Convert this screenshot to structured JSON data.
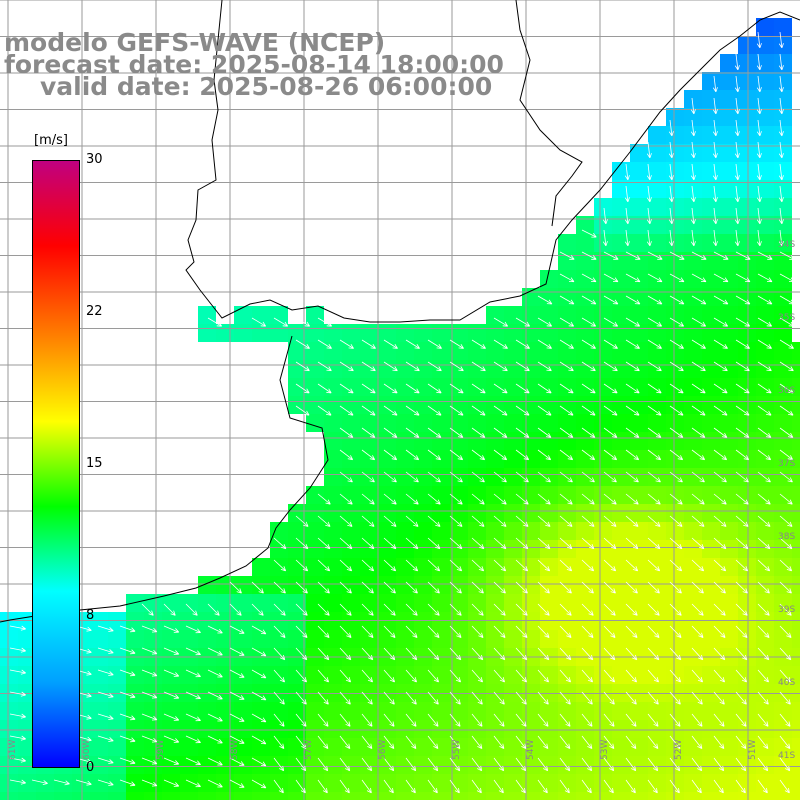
{
  "title": {
    "line1": "modelo GEFS-WAVE (NCEP)",
    "line2": "forecast date: 2025-08-14 18:00:00",
    "line3": "valid date: 2025-08-26 06:00:00"
  },
  "colorbar": {
    "units": "[m/s]",
    "ticks": [
      "30",
      "22",
      "15",
      "8",
      "0"
    ],
    "min": 0,
    "max": 30,
    "colors": [
      "#0000ff",
      "#00a0ff",
      "#00ffff",
      "#00ff00",
      "#ffff00",
      "#ff8000",
      "#ff0000",
      "#c00080"
    ]
  },
  "grid": {
    "lat_labels": [
      "34S",
      "35S",
      "36S",
      "37S",
      "38S",
      "39S",
      "40S",
      "41S"
    ],
    "lon_labels": [
      "61W",
      "60W",
      "59W",
      "58W",
      "57W",
      "56W",
      "55W",
      "54W",
      "53W",
      "52W",
      "51W"
    ]
  }
}
